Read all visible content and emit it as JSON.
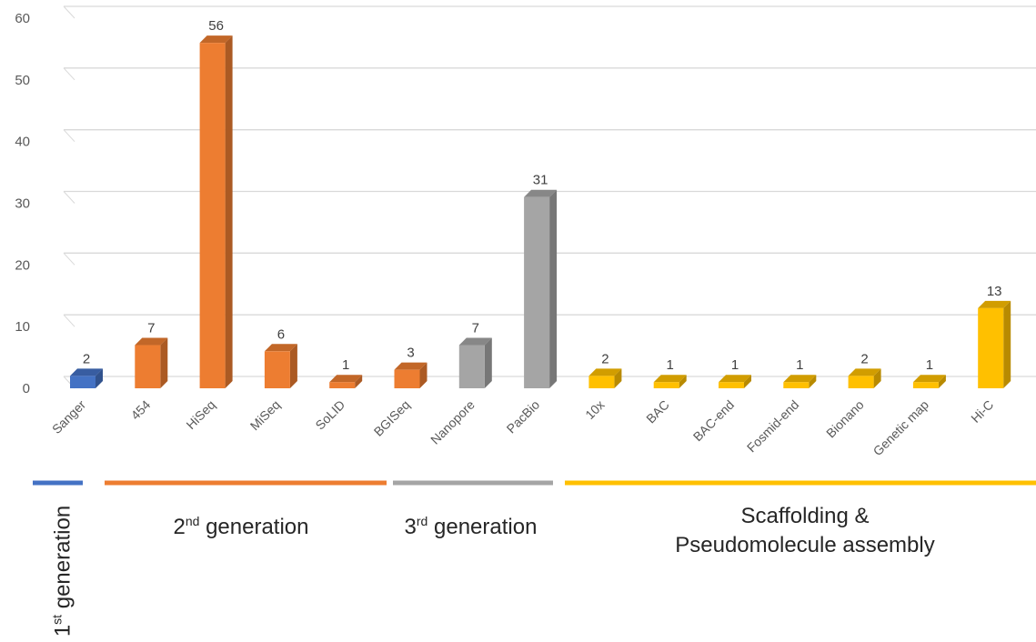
{
  "chart_data": {
    "type": "bar",
    "title": "",
    "xlabel": "",
    "ylabel": "",
    "ylim": [
      0,
      60
    ],
    "yticks": [
      0,
      10,
      20,
      30,
      40,
      50,
      60
    ],
    "grid": true,
    "categories": [
      "Sanger",
      "454",
      "HiSeq",
      "MiSeq",
      "SoLID",
      "BGISeq",
      "Nanopore",
      "PacBio",
      "10x",
      "BAC",
      "BAC-end",
      "Fosmid-end",
      "Bionano",
      "Genetic map",
      "Hi-C"
    ],
    "values": [
      2,
      7,
      56,
      6,
      1,
      3,
      7,
      31,
      2,
      1,
      1,
      1,
      2,
      1,
      13
    ],
    "groups": [
      {
        "ord": "1",
        "sup": "st",
        "text": "generation",
        "color": "#4472C4",
        "range": [
          0,
          0
        ]
      },
      {
        "ord": "2",
        "sup": "nd",
        "text": "generation",
        "color": "#ED7D31",
        "range": [
          1,
          5
        ]
      },
      {
        "ord": "3",
        "sup": "rd",
        "text": "generation",
        "color": "#A5A5A5",
        "range": [
          6,
          7
        ]
      },
      {
        "line1": "Scaffolding &",
        "line2": "Pseudomolecule assembly",
        "color": "#FFC000",
        "range": [
          8,
          14
        ]
      }
    ]
  },
  "colors": {
    "gen1": "#4472C4",
    "gen2": "#ED7D31",
    "gen3": "#A5A5A5",
    "scaffold": "#FFC000",
    "grid": "#D9D9D9"
  }
}
